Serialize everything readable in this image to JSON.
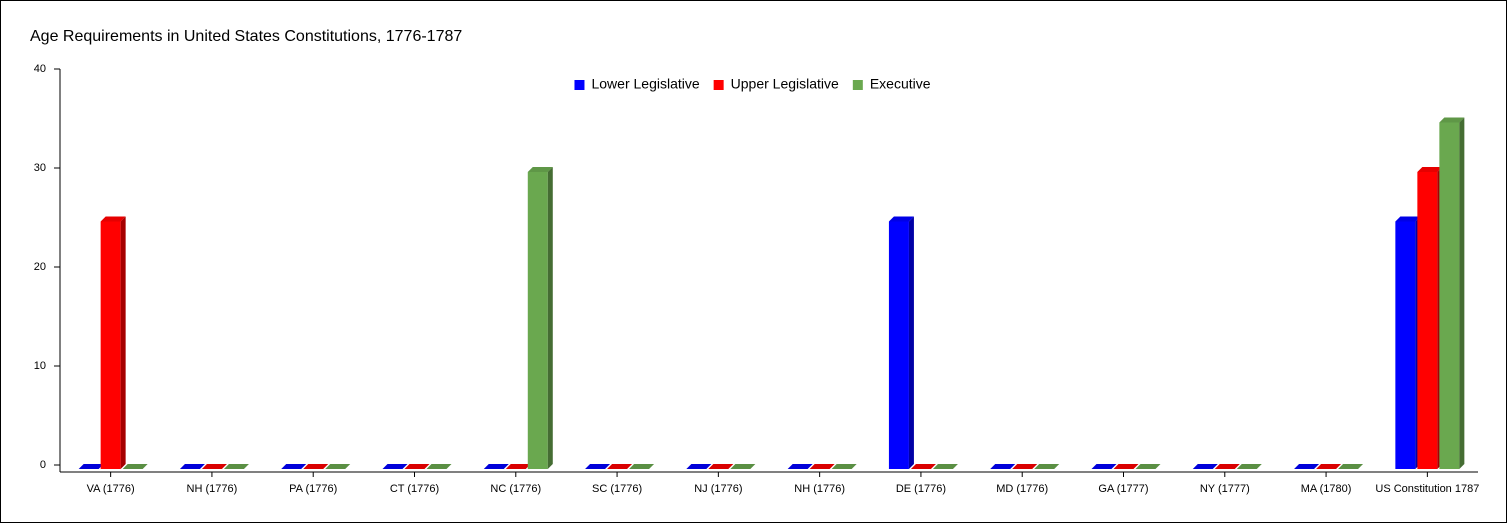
{
  "chart_data": {
    "type": "bar3d",
    "title": "Age Requirements in United States Constitutions, 1776-1787",
    "categories": [
      "VA (1776)",
      "NH (1776)",
      "PA (1776)",
      "CT (1776)",
      "NC (1776)",
      "SC (1776)",
      "NJ (1776)",
      "NH (1776)",
      "DE (1776)",
      "MD (1776)",
      "GA (1777)",
      "NY (1777)",
      "MA (1780)",
      "US Constitution 1787"
    ],
    "series": [
      {
        "name": "Lower Legislative",
        "color": "#0000ff",
        "values": [
          0,
          0,
          0,
          0,
          0,
          0,
          0,
          0,
          25,
          0,
          0,
          0,
          0,
          25
        ]
      },
      {
        "name": "Upper Legislative",
        "color": "#ff0000",
        "values": [
          25,
          0,
          0,
          0,
          0,
          0,
          0,
          0,
          0,
          0,
          0,
          0,
          0,
          30
        ]
      },
      {
        "name": "Executive",
        "color": "#6aa84f",
        "values": [
          0,
          0,
          0,
          0,
          30,
          0,
          0,
          0,
          0,
          0,
          0,
          0,
          0,
          35
        ]
      }
    ],
    "ylim": [
      0,
      40
    ],
    "yticks": [
      0,
      10,
      20,
      30,
      40
    ],
    "legend": "top"
  }
}
